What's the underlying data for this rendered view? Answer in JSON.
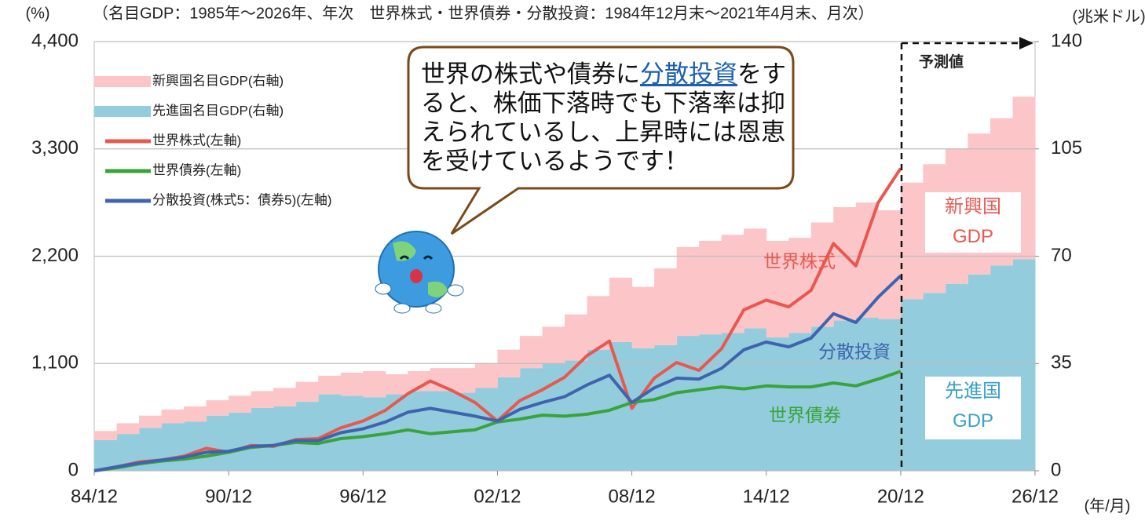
{
  "chart_data": {
    "type": "stacked-area-line",
    "subtitle": "（名目GDP：1985年～2026年、年次　世界株式・世界債券・分散投資：1984年12月末～2021年4月末、月次）",
    "y_label": "(%)",
    "y2_label": "(兆米ドル)",
    "x_label": "(年/月)",
    "categories": [
      "84/12",
      null,
      null,
      null,
      null,
      null,
      "90/12",
      null,
      null,
      null,
      null,
      null,
      "96/12",
      null,
      null,
      null,
      null,
      null,
      "02/12",
      null,
      null,
      null,
      null,
      null,
      "08/12",
      null,
      null,
      null,
      null,
      null,
      "14/12",
      null,
      null,
      null,
      null,
      null,
      "20/12",
      null,
      null,
      null,
      null,
      null,
      "26/12"
    ],
    "ylim": [
      0,
      4400
    ],
    "yticks": [
      0,
      {
        "value": 1100,
        "label": "1,100"
      },
      {
        "value": 2200,
        "label": "2,200"
      },
      {
        "value": 3300,
        "label": "3,300"
      },
      {
        "value": 4400,
        "label": "4,400"
      }
    ],
    "y2lim": [
      0,
      140
    ],
    "y2ticks": [
      0,
      35,
      70,
      105,
      140
    ],
    "grid": true,
    "series": [
      {
        "name": "新興国名目GDP(右軸)",
        "kind": "area",
        "axis": "y2",
        "color": "#fcc6c9",
        "values": [
          3,
          3.5,
          4,
          4.5,
          5,
          5,
          5.5,
          5.5,
          6,
          6.5,
          6,
          7.5,
          8.5,
          6.5,
          6.5,
          7.5,
          8,
          8,
          9,
          10.5,
          12,
          15,
          17.5,
          21,
          20,
          25,
          29,
          30.5,
          32,
          32.5,
          31.5,
          31,
          34,
          37,
          37.5,
          35.5,
          38,
          42,
          44,
          46,
          48,
          53,
          null
        ]
      },
      {
        "name": "先進国名目GDP(右軸)",
        "kind": "area",
        "axis": "y2",
        "color": "#93cddd",
        "values": [
          10,
          12,
          14,
          15.5,
          16,
          18,
          19,
          20.5,
          21,
          22.5,
          25,
          24.5,
          24,
          25,
          26,
          26,
          25.5,
          27,
          30.5,
          33.5,
          35,
          36,
          39.5,
          42,
          40,
          41,
          44,
          44.5,
          45,
          46.5,
          43.5,
          45,
          47,
          49,
          50,
          49.5,
          56,
          58,
          61,
          64,
          67,
          69,
          null
        ]
      },
      {
        "name": "世界株式(左軸)",
        "kind": "line",
        "color": "#e8584f",
        "values": [
          0,
          40,
          90,
          110,
          150,
          230,
          190,
          260,
          250,
          320,
          330,
          440,
          510,
          620,
          790,
          920,
          820,
          700,
          510,
          720,
          830,
          960,
          1180,
          1330,
          640,
          950,
          1110,
          1030,
          1250,
          1650,
          1750,
          1680,
          1850,
          2330,
          2100,
          2750,
          3100,
          null,
          null,
          null,
          null,
          null,
          null
        ]
      },
      {
        "name": "世界債券(左軸)",
        "kind": "line",
        "color": "#3aa33a",
        "values": [
          0,
          30,
          70,
          100,
          120,
          150,
          190,
          240,
          260,
          290,
          280,
          330,
          350,
          380,
          420,
          380,
          400,
          420,
          500,
          530,
          570,
          560,
          580,
          620,
          700,
          730,
          800,
          830,
          860,
          840,
          870,
          860,
          860,
          900,
          870,
          940,
          1020,
          null,
          null,
          null,
          null,
          null,
          null
        ]
      },
      {
        "name": "分散投資(株式5：債券5)(左軸)",
        "kind": "line",
        "color": "#3f63ad",
        "values": [
          0,
          40,
          80,
          110,
          140,
          190,
          200,
          250,
          260,
          310,
          310,
          390,
          430,
          500,
          600,
          640,
          600,
          560,
          510,
          630,
          700,
          760,
          880,
          980,
          700,
          850,
          950,
          940,
          1050,
          1240,
          1320,
          1270,
          1360,
          1610,
          1520,
          1780,
          2000,
          null,
          null,
          null,
          null,
          null,
          null
        ]
      }
    ],
    "annotations": {
      "forecast": "予測値",
      "stock": "世界株式",
      "mixed": "分散投資",
      "bond": "世界債券",
      "emerging": "新興国\nGDP",
      "developed": "先進国\nGDP"
    },
    "callout": {
      "before": "世界の株式や債券に",
      "link": "分散投資",
      "after": "をすると、株価下落時でも下落率は抑えられているし、上昇時には恩恵を受けているようです！"
    }
  }
}
